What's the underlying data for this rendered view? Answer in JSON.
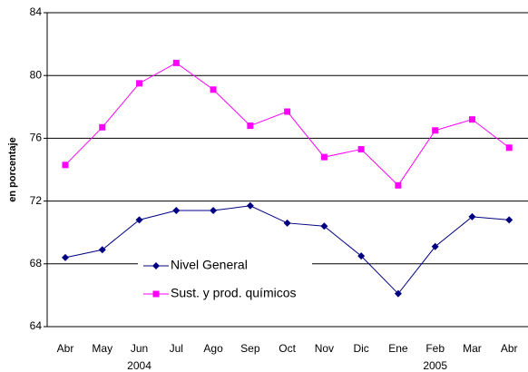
{
  "chart_data": {
    "type": "line",
    "y_label": "en porcentaje",
    "categories": [
      "Abr",
      "May",
      "Jun",
      "Jul",
      "Ago",
      "Sep",
      "Oct",
      "Nov",
      "Dic",
      "Ene",
      "Feb",
      "Mar",
      "Abr"
    ],
    "year_labels": [
      {
        "label": "2004",
        "index": 2
      },
      {
        "label": "2005",
        "index": 10
      }
    ],
    "series": [
      {
        "name": "Nivel General",
        "color": "#000080",
        "marker": "diamond",
        "values": [
          68.4,
          68.9,
          70.8,
          71.4,
          71.4,
          71.7,
          70.6,
          70.4,
          68.5,
          66.1,
          69.1,
          71.0,
          70.8
        ]
      },
      {
        "name": "Sust. y prod. químicos",
        "color": "#ff00ff",
        "marker": "square",
        "values": [
          74.3,
          76.7,
          79.5,
          80.8,
          79.1,
          76.8,
          77.7,
          74.8,
          75.3,
          73.0,
          76.5,
          77.2,
          75.4
        ]
      }
    ],
    "ylim": [
      64,
      84
    ],
    "yticks": [
      64,
      68,
      72,
      76,
      80,
      84
    ],
    "grid": true
  }
}
